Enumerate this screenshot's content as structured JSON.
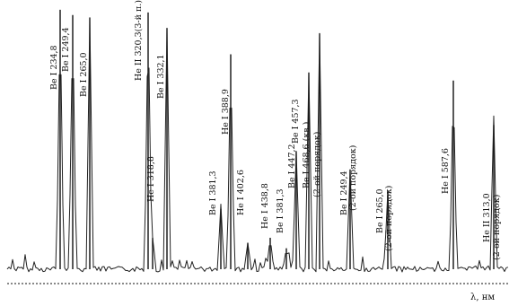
{
  "chart_data": {
    "type": "line",
    "title": "",
    "xlabel": "λ, нм",
    "ylabel": "",
    "grid": false,
    "legend": "none",
    "peaks": [
      {
        "label": "Be I 234,8",
        "height": 0.99
      },
      {
        "label": "Be I 249,4",
        "height": 0.97
      },
      {
        "label": "Be I 265,0",
        "height": 0.96
      },
      {
        "label": "He II 320,3(3-й п.)",
        "height": 0.98
      },
      {
        "label": "He I 318,8",
        "height": 0.12
      },
      {
        "label": "Be I 332,1",
        "height": 0.92
      },
      {
        "label": "Be I 381,3",
        "height": 0.23
      },
      {
        "label": "He I 388,9",
        "height": 0.82
      },
      {
        "label": "He I 402,6",
        "height": 0.1
      },
      {
        "label": "He I 438,8",
        "height": 0.12
      },
      {
        "label": "Be I 381,3",
        "height": 0.08
      },
      {
        "label": "Be I 447,2",
        "height": 0.45
      },
      {
        "label": "Be I 457,3",
        "height": 0.75
      },
      {
        "label": "Be I 468,6 (кв.)",
        "height": 0.9
      },
      {
        "label": "(2-ой порядок)",
        "height": 0.0
      },
      {
        "label": "Be I 249,4",
        "height": 0.38
      },
      {
        "label": "(2-ой порядок)",
        "height": 0.0
      },
      {
        "label": "Be I 265,0",
        "height": 0.3
      },
      {
        "label": "(2-ой порядок)",
        "height": 0.0
      },
      {
        "label": "He I 587,6",
        "height": 0.72
      },
      {
        "label": "He II 313,0",
        "height": 0.55
      },
      {
        "label": "(2-ой порядок)",
        "height": 0.0
      }
    ]
  }
}
